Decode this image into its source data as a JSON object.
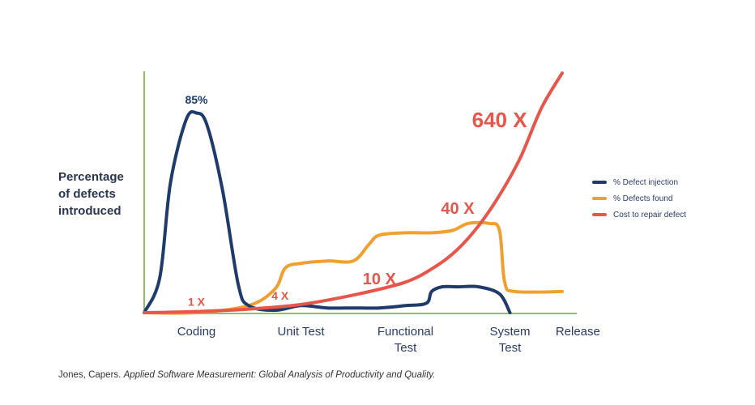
{
  "chart_data": {
    "type": "line",
    "ylabel": [
      "Percentage",
      "of defects",
      "introduced"
    ],
    "categories": [
      "Coding",
      "Unit Test",
      "Functional\nTest",
      "System\nTest",
      "Release"
    ],
    "series": [
      {
        "name": "% Defect injection",
        "color": "#1f3b6b",
        "x": [
          0,
          0.15,
          0.25,
          0.4,
          0.5,
          0.6,
          0.75,
          0.9,
          1.0,
          1.25,
          1.5,
          1.75,
          2.0,
          2.25,
          2.5,
          2.7,
          2.75,
          2.85,
          3.0,
          3.2,
          3.4,
          3.5
        ],
        "y": [
          0,
          15,
          55,
          82,
          85,
          80,
          52,
          12,
          3,
          1,
          3,
          2,
          2,
          2,
          3,
          4,
          9,
          11,
          11,
          11,
          8,
          0
        ]
      },
      {
        "name": "% Defects found",
        "color": "#f0a030",
        "x": [
          0,
          0.5,
          1.0,
          1.25,
          1.35,
          1.5,
          1.75,
          2.0,
          2.15,
          2.25,
          2.5,
          2.75,
          2.95,
          3.1,
          3.3,
          3.4,
          3.45,
          3.55,
          4.0
        ],
        "y": [
          0,
          0,
          3,
          10,
          19,
          21,
          22,
          22,
          29,
          33,
          34,
          34,
          35,
          38,
          38,
          35,
          13,
          9,
          9
        ]
      },
      {
        "name": "Cost to repair defect",
        "color": "#e8554a",
        "x": [
          0,
          0.5,
          1.0,
          1.5,
          2.0,
          2.5,
          2.8,
          3.0,
          3.2,
          3.4,
          3.6,
          3.8,
          4.0
        ],
        "y": [
          0,
          0.5,
          1.5,
          3.5,
          7.5,
          13,
          20,
          27,
          37,
          50,
          66,
          87,
          102
        ]
      }
    ],
    "annotations": [
      {
        "text": "85%",
        "x": 0.5,
        "y": 89,
        "color": "#1f3b6b",
        "size": "small"
      },
      {
        "text": "1 X",
        "x": 0.5,
        "y": 3,
        "color": "#e8554a",
        "size": "small"
      },
      {
        "text": "4 X",
        "x": 1.3,
        "y": 5.5,
        "color": "#e8554a",
        "size": "small"
      },
      {
        "text": "10 X",
        "x": 2.25,
        "y": 12,
        "color": "#e8554a",
        "size": "medium"
      },
      {
        "text": "40 X",
        "x": 3.0,
        "y": 42,
        "color": "#e8554a",
        "size": "medium"
      },
      {
        "text": "640 X",
        "x": 3.4,
        "y": 79,
        "color": "#e8554a",
        "size": "large"
      }
    ],
    "xlim": [
      0,
      4
    ],
    "ylim": [
      0,
      100
    ],
    "legend_position": "right"
  },
  "citation": {
    "author": "Jones, Capers.",
    "title": "Applied Software Measurement: Global Analysis of Productivity and Quality."
  },
  "axis_color": "#8cc35b"
}
